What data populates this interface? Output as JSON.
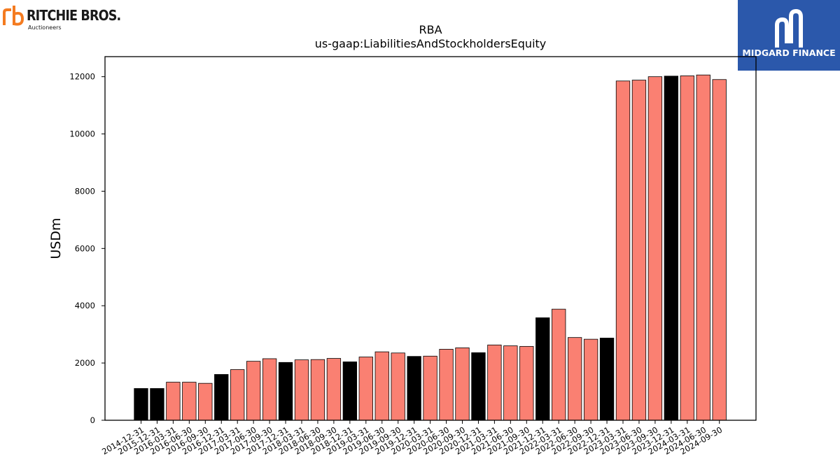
{
  "logos": {
    "brand_name": "RITCHIE BROS.",
    "brand_sub": "Auctioneers",
    "brand_color": "#f47b20",
    "partner_name": "MIDGARD FINANCE",
    "partner_bg": "#2b58ab"
  },
  "chart_data": {
    "type": "bar",
    "title": "RBA",
    "subtitle": "us-gaap:LiabilitiesAndStockholdersEquity",
    "xlabel": "",
    "ylabel": "USDm",
    "ylim": [
      0,
      12700
    ],
    "yticks": [
      0,
      2000,
      4000,
      6000,
      8000,
      10000,
      12000
    ],
    "grid": false,
    "legend": "none",
    "colors": {
      "annual": "#000000",
      "quarterly": "#fa8072",
      "edge": "#000000"
    },
    "categories": [
      "2014-12-31",
      "2015-12-31",
      "2016-03-31",
      "2016-06-30",
      "2016-09-30",
      "2016-12-31",
      "2017-03-31",
      "2017-06-30",
      "2017-09-30",
      "2017-12-31",
      "2018-03-31",
      "2018-06-30",
      "2018-09-30",
      "2018-12-31",
      "2019-03-31",
      "2019-06-30",
      "2019-09-30",
      "2019-12-31",
      "2020-03-31",
      "2020-06-30",
      "2020-09-30",
      "2020-12-31",
      "2021-03-31",
      "2021-06-30",
      "2021-09-30",
      "2021-12-31",
      "2022-03-31",
      "2022-06-30",
      "2022-09-30",
      "2022-12-31",
      "2023-03-31",
      "2023-06-30",
      "2023-09-30",
      "2023-12-31",
      "2024-03-31",
      "2024-06-30",
      "2024-09-30"
    ],
    "values": [
      1110,
      1110,
      1330,
      1330,
      1290,
      1600,
      1770,
      2060,
      2150,
      2020,
      2110,
      2120,
      2160,
      2040,
      2210,
      2390,
      2350,
      2230,
      2240,
      2480,
      2530,
      2360,
      2630,
      2600,
      2580,
      3580,
      3880,
      2890,
      2830,
      2870,
      11850,
      11880,
      12000,
      12020,
      12030,
      12060,
      11900
    ],
    "annual": [
      true,
      true,
      false,
      false,
      false,
      true,
      false,
      false,
      false,
      true,
      false,
      false,
      false,
      true,
      false,
      false,
      false,
      true,
      false,
      false,
      false,
      true,
      false,
      false,
      false,
      true,
      false,
      false,
      false,
      true,
      false,
      false,
      false,
      true,
      false,
      false,
      false
    ]
  }
}
